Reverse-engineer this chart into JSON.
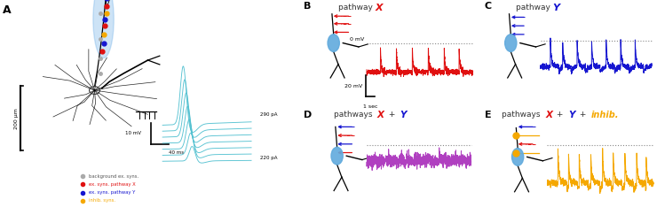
{
  "panel_labels": [
    "A",
    "B",
    "C",
    "D",
    "E"
  ],
  "color_red": "#e01010",
  "color_blue": "#1515d0",
  "color_orange": "#f5a800",
  "color_cyan": "#50c0d0",
  "color_purple": "#b040c0",
  "color_gray": "#aaaaaa",
  "color_soma": "#60aadd",
  "legend_items": [
    {
      "label": "background ex. syns.",
      "color": "#aaaaaa"
    },
    {
      "label": "ex. syns. pathway X",
      "color": "#e01010"
    },
    {
      "label": "ex. syns. pathway Y",
      "color": "#1515d0"
    },
    {
      "label": "inhib. syns.",
      "color": "#f5a800"
    }
  ],
  "scale_bar_A": "200 μm",
  "scale_A_mV": "10 mV",
  "scale_A_ms": "40 ms",
  "scale_A_pA_top": "290 pA",
  "scale_A_pA_bot": "220 pA",
  "bg_color": "#ffffff"
}
